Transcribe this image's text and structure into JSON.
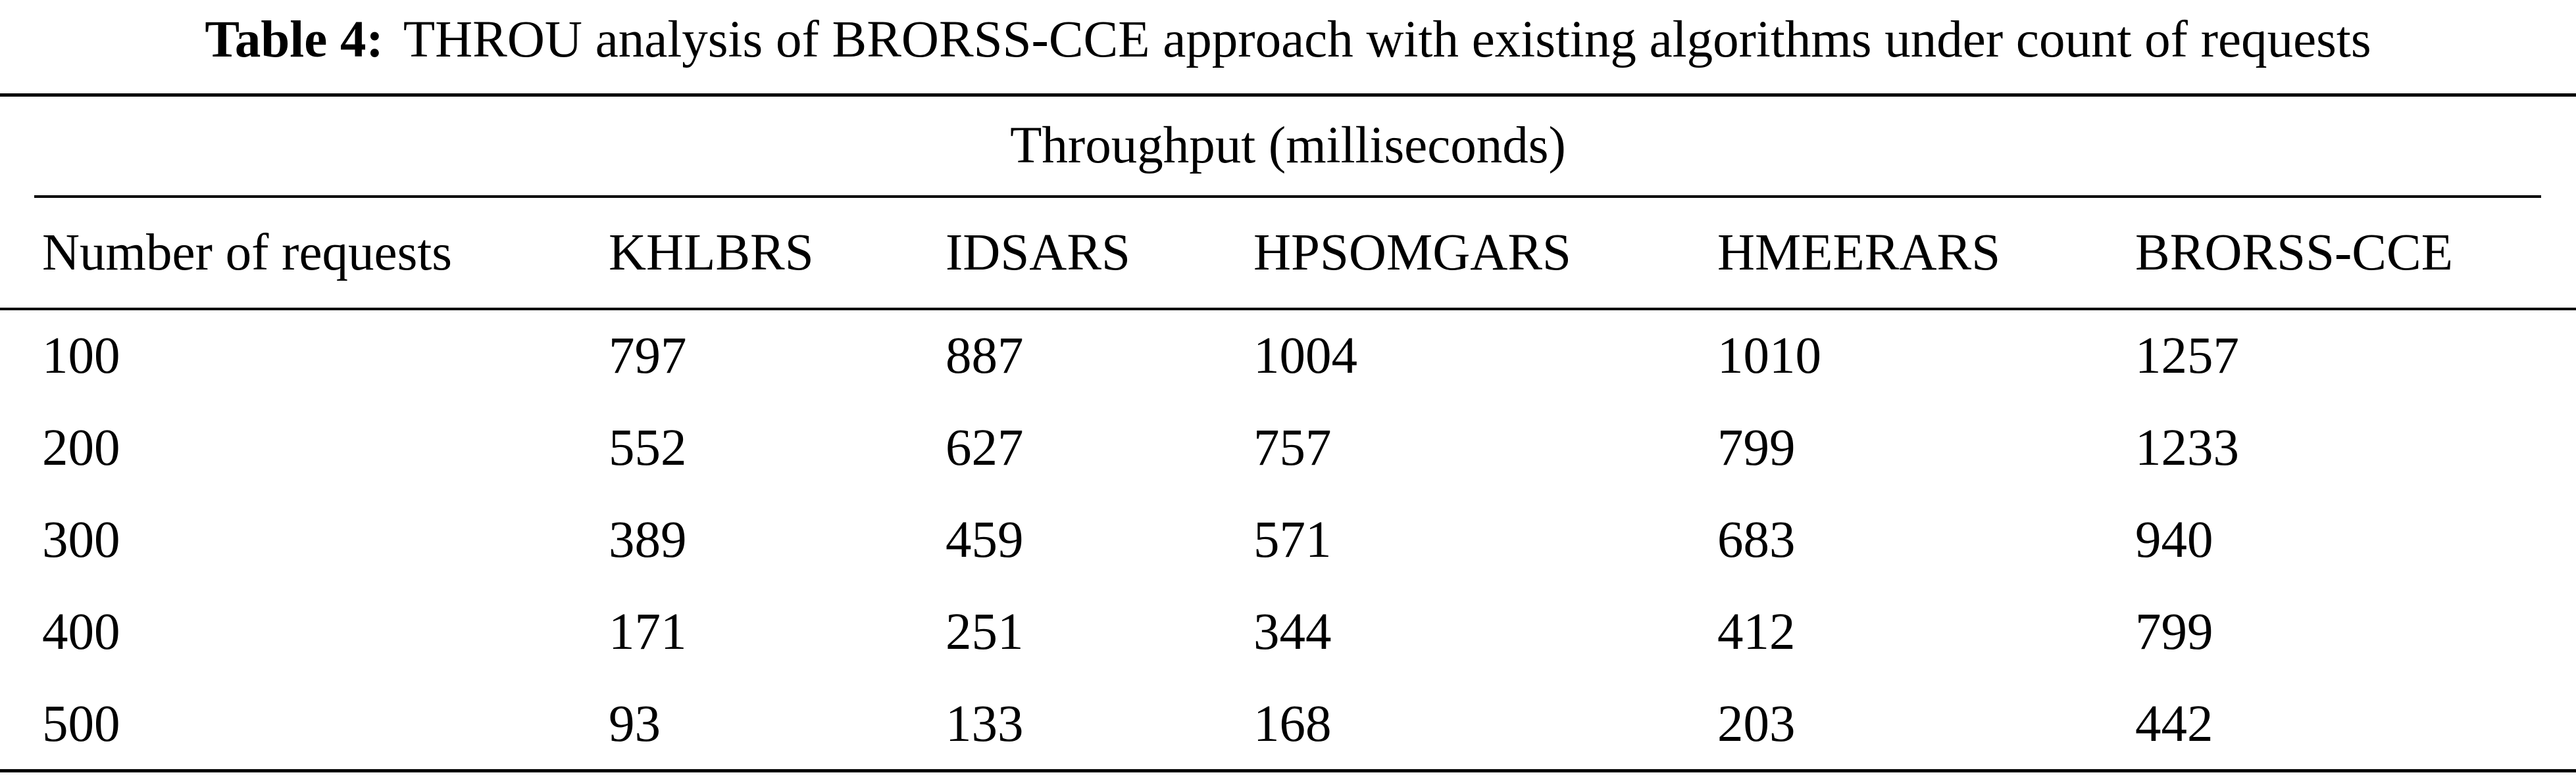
{
  "caption": {
    "label": "Table 4:",
    "text": "THROU analysis of BRORSS-CCE approach with existing algorithms under count of requests"
  },
  "table": {
    "group_header": "Throughput (milliseconds)",
    "columns": [
      "Number of requests",
      "KHLBRS",
      "IDSARS",
      "HPSOMGARS",
      "HMEERARS",
      "BRORSS-CCE"
    ],
    "rows": [
      [
        "100",
        "797",
        "887",
        "1004",
        "1010",
        "1257"
      ],
      [
        "200",
        "552",
        "627",
        "757",
        "799",
        "1233"
      ],
      [
        "300",
        "389",
        "459",
        "571",
        "683",
        "940"
      ],
      [
        "400",
        "171",
        "251",
        "344",
        "412",
        "799"
      ],
      [
        "500",
        "93",
        "133",
        "168",
        "203",
        "442"
      ]
    ]
  }
}
